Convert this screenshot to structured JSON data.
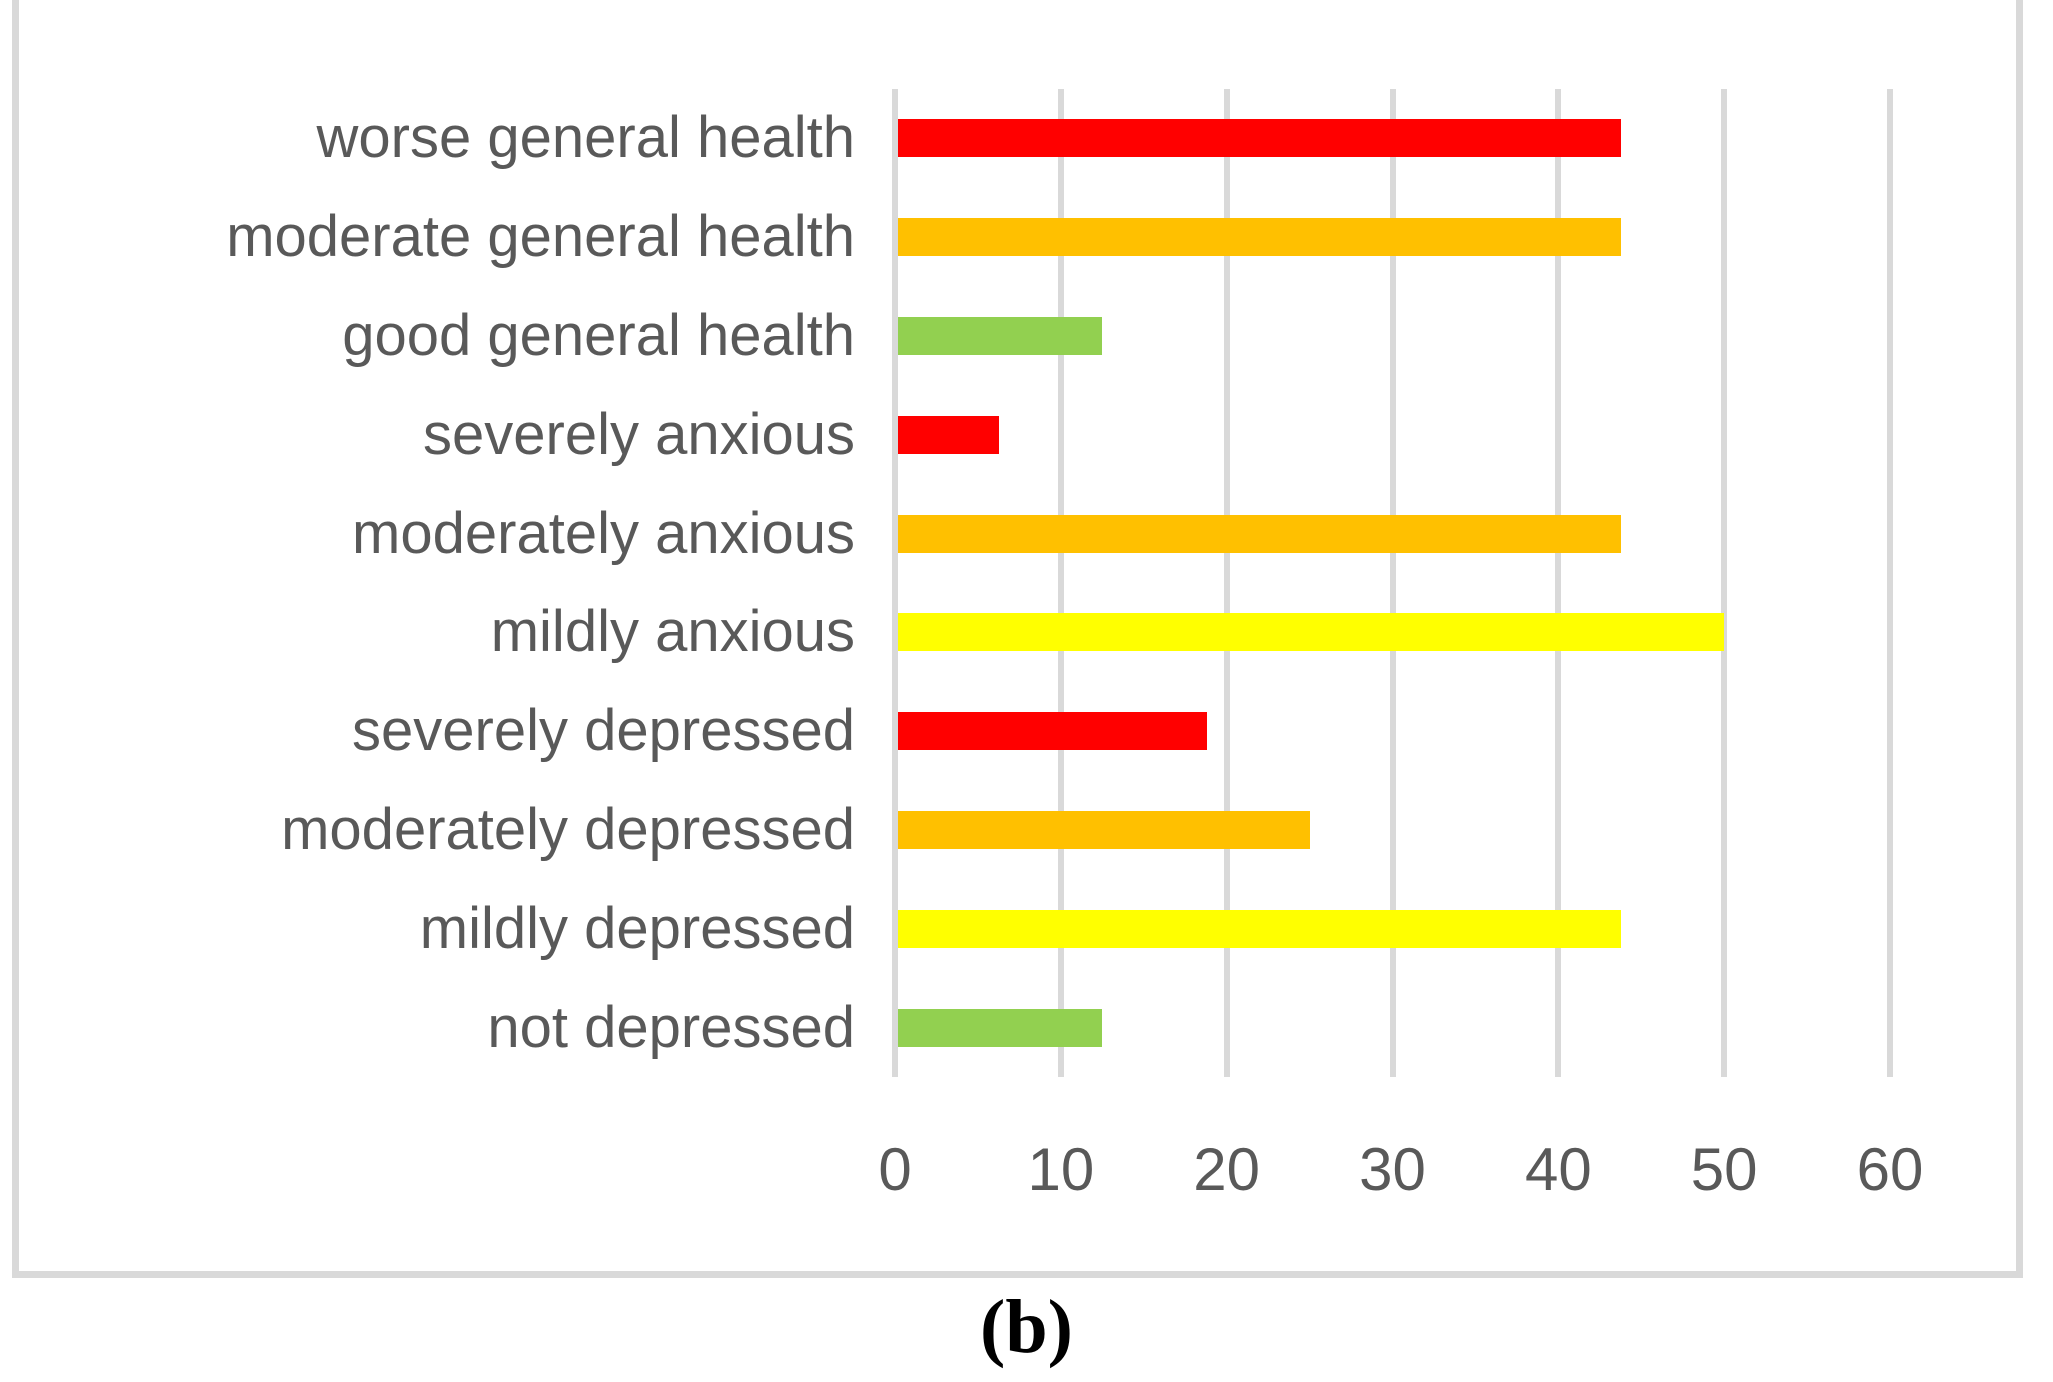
{
  "chart_data": {
    "type": "bar",
    "orientation": "horizontal",
    "title": "",
    "xlabel": "",
    "ylabel": "",
    "caption": "(b)",
    "categories": [
      "worse general health",
      "moderate general health",
      "good general health",
      "severely anxious",
      "moderately anxious",
      "mildly anxious",
      "severely depressed",
      "moderately depressed",
      "mildly depressed",
      "not depressed"
    ],
    "values": [
      43.8,
      43.8,
      12.5,
      6.3,
      43.8,
      50,
      18.8,
      25,
      43.8,
      12.5
    ],
    "bar_colors": [
      "#FF0000",
      "#FFC000",
      "#92D050",
      "#FF0000",
      "#FFC000",
      "#FFFF00",
      "#FF0000",
      "#FFC000",
      "#FFFF00",
      "#92D050"
    ],
    "x_ticks": [
      "0",
      "10",
      "20",
      "30",
      "40",
      "50",
      "60"
    ],
    "xlim": [
      0,
      60
    ],
    "grid": true,
    "legend": "none",
    "colors": {
      "red": "#FF0000",
      "orange": "#FFC000",
      "green": "#92D050",
      "yellow": "#FFFF00",
      "gridline": "#D9D9D9",
      "frame_border": "#D9D9D9",
      "axis_text": "#595959",
      "caption_text": "#000000",
      "background": "#FFFFFF"
    }
  }
}
